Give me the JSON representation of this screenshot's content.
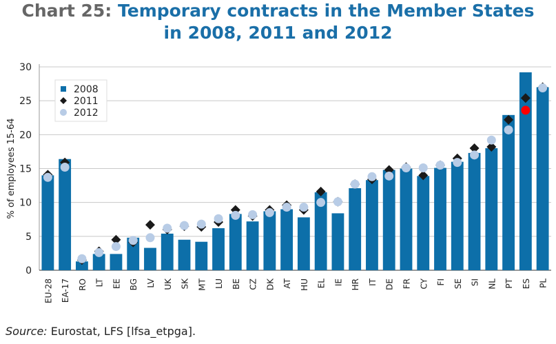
{
  "title": {
    "prefix": "Chart 25:",
    "line1": "Temporary contracts in the Member States",
    "line2": "in 2008, 2011 and 2012"
  },
  "source": {
    "label": "Source:",
    "text": "Eurostat, LFS [lfsa_etpga]."
  },
  "colors": {
    "bar": "#0d6fa9",
    "marker2011": "#1a1a1a",
    "marker2012": "#b8cce6",
    "highlight": "#ff0000",
    "grid": "#c8c8c8"
  },
  "chart_data": {
    "type": "bar",
    "ylabel": "% of employees 15-64",
    "ylim": [
      0,
      30
    ],
    "yticks": [
      0,
      5,
      10,
      15,
      20,
      25,
      30
    ],
    "legend": {
      "position": "top-left",
      "entries": [
        "2008",
        "2011",
        "2012"
      ]
    },
    "categories": [
      "EU-28",
      "EA-17",
      "RO",
      "LT",
      "EE",
      "BG",
      "LV",
      "UK",
      "SK",
      "MT",
      "LU",
      "BE",
      "CZ",
      "DK",
      "AT",
      "HU",
      "EL",
      "IE",
      "HR",
      "IT",
      "DE",
      "FR",
      "CY",
      "FI",
      "SE",
      "SI",
      "NL",
      "PT",
      "ES",
      "PL"
    ],
    "series": [
      {
        "name": "2008",
        "style": "bar",
        "values": [
          14.0,
          16.4,
          1.3,
          2.4,
          2.4,
          4.8,
          3.3,
          5.4,
          4.5,
          4.2,
          6.2,
          8.3,
          7.2,
          8.7,
          9.0,
          7.8,
          11.5,
          8.4,
          12.1,
          13.3,
          14.8,
          15.0,
          13.9,
          15.1,
          16.0,
          17.3,
          18.0,
          22.9,
          29.2,
          27.0
        ]
      },
      {
        "name": "2011",
        "style": "diamond",
        "values": [
          14.1,
          15.9,
          1.5,
          2.8,
          4.5,
          4.1,
          6.7,
          6.0,
          6.5,
          6.4,
          7.1,
          8.9,
          8.0,
          8.9,
          9.6,
          8.9,
          11.6,
          10.1,
          12.7,
          13.4,
          14.8,
          15.2,
          14.0,
          15.5,
          16.5,
          18.0,
          18.2,
          22.2,
          25.4,
          27.0
        ]
      },
      {
        "name": "2012",
        "style": "circle",
        "values": [
          13.7,
          15.2,
          1.7,
          2.6,
          3.5,
          4.4,
          4.8,
          6.2,
          6.6,
          6.8,
          7.6,
          8.1,
          8.2,
          8.5,
          9.3,
          9.3,
          10.0,
          10.1,
          12.7,
          13.8,
          13.9,
          15.1,
          15.1,
          15.5,
          15.9,
          17.0,
          19.2,
          20.7,
          23.6,
          26.9
        ]
      }
    ],
    "highlight": {
      "category": "ES",
      "series": "2012"
    }
  }
}
